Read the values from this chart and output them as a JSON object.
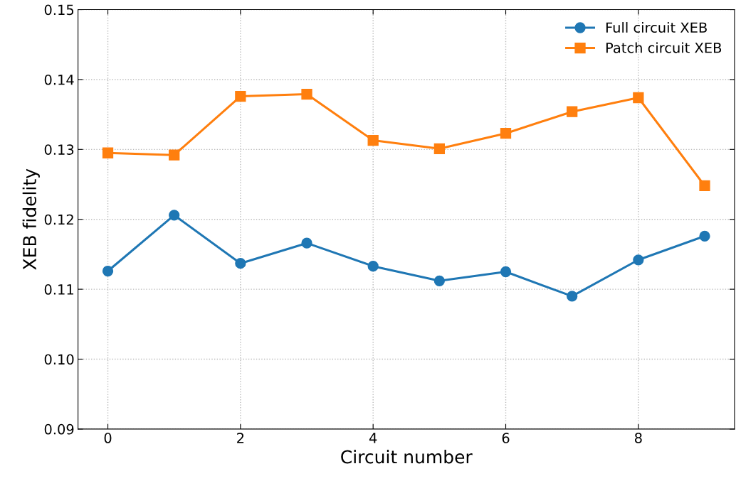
{
  "chart_data": {
    "type": "line",
    "xlabel": "Circuit number",
    "ylabel": "XEB fidelity",
    "x": [
      0,
      1,
      2,
      3,
      4,
      5,
      6,
      7,
      8,
      9
    ],
    "series": [
      {
        "name": "Full circuit XEB",
        "color": "#1f77b4",
        "marker": "circle",
        "values": [
          0.1126,
          0.1206,
          0.1137,
          0.1166,
          0.1133,
          0.1112,
          0.1125,
          0.109,
          0.1142,
          0.1176
        ]
      },
      {
        "name": "Patch circuit XEB",
        "color": "#ff7f0e",
        "marker": "square",
        "values": [
          0.1295,
          0.1292,
          0.1376,
          0.1379,
          0.1313,
          0.1301,
          0.1323,
          0.1354,
          0.1374,
          0.1248
        ]
      }
    ],
    "xlim": [
      -0.45,
      9.45
    ],
    "xticks": [
      0,
      2,
      4,
      6,
      8
    ],
    "ylim": [
      0.09,
      0.15
    ],
    "yticks": [
      0.09,
      {
        "value": 0.1,
        "label": "0.10"
      },
      0.11,
      0.12,
      0.13,
      0.14,
      0.15
    ],
    "grid": true,
    "legend": "top right",
    "line_style": "solid"
  }
}
